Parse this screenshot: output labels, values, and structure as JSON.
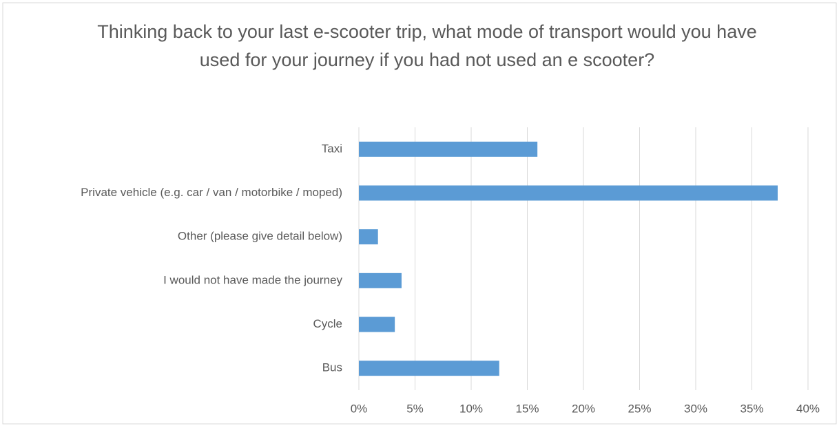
{
  "chart_data": {
    "type": "bar",
    "orientation": "horizontal",
    "title": "Thinking back to your last e-scooter trip, what mode of transport would you have used for your journey if you had not used an e scooter?",
    "categories": [
      "Taxi",
      "Private vehicle (e.g. car / van / motorbike / moped)",
      "Other (please give detail below)",
      "I would not have made the journey",
      "Cycle",
      "Bus"
    ],
    "values": [
      15.9,
      37.3,
      1.7,
      3.8,
      3.2,
      12.5
    ],
    "color": "#5b9bd5",
    "xlim": [
      0,
      40
    ],
    "xticks": [
      {
        "value": 0,
        "label": "0%"
      },
      {
        "value": 5,
        "label": "5%"
      },
      {
        "value": 10,
        "label": "10%"
      },
      {
        "value": 15,
        "label": "15%"
      },
      {
        "value": 20,
        "label": "20%"
      },
      {
        "value": 25,
        "label": "25%"
      },
      {
        "value": 30,
        "label": "30%"
      },
      {
        "value": 35,
        "label": "35%"
      },
      {
        "value": 40,
        "label": "40%"
      }
    ],
    "grid": true
  }
}
